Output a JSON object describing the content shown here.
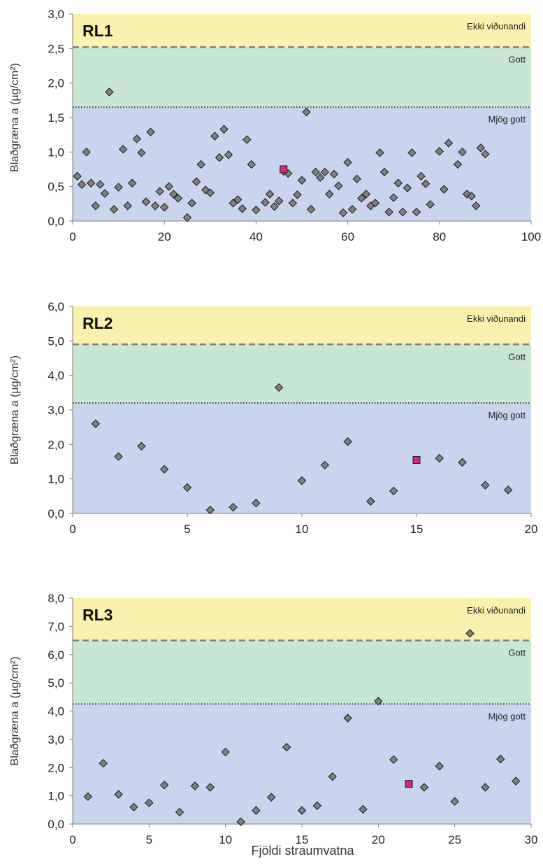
{
  "xlabel": "Fjöldi straumvatna",
  "chart_data": [
    {
      "type": "scatter",
      "title": "RL1",
      "ylabel": "Blaðgræna a (µg/cm²)",
      "xlim": [
        0,
        100
      ],
      "ylim": [
        0,
        3
      ],
      "xticks": [
        0,
        20,
        40,
        60,
        80,
        100
      ],
      "xtick_labels": [
        "0",
        "20",
        "40",
        "60",
        "80",
        "100"
      ],
      "yticks": [
        0,
        0.5,
        1,
        1.5,
        2,
        2.5,
        3
      ],
      "ytick_labels": [
        "0,0",
        "0,5",
        "1,0",
        "1,5",
        "2,0",
        "2,5",
        "3,0"
      ],
      "zones": [
        {
          "label": "Ekki viðunandi",
          "from": 2.52,
          "to": 3.0,
          "color": "#fbf1ae"
        },
        {
          "label": "Gott",
          "from": 1.65,
          "to": 2.52,
          "color": "#c7e7d2"
        },
        {
          "label": "Mjög gott",
          "from": 0,
          "to": 1.65,
          "color": "#c8d5ec"
        }
      ],
      "thresholds": [
        {
          "y": 2.52,
          "style": "dashed",
          "color": "#808080"
        },
        {
          "y": 1.65,
          "style": "dotted",
          "color": "#333333"
        }
      ],
      "series": [
        {
          "marker": "diamond",
          "color": "#808080",
          "x": [
            1,
            2,
            3,
            4,
            5,
            6,
            7,
            8,
            9,
            10,
            11,
            12,
            13,
            14,
            15,
            16,
            17,
            18,
            19,
            20,
            21,
            22,
            23,
            25,
            26,
            27,
            28,
            29,
            30,
            31,
            32,
            33,
            34,
            35,
            36,
            37,
            38,
            39,
            40,
            42,
            43,
            44,
            45,
            46,
            47,
            48,
            49,
            50,
            51,
            52,
            53,
            54,
            55,
            56,
            57,
            58,
            59,
            60,
            61,
            62,
            63,
            64,
            65,
            66,
            67,
            68,
            69,
            70,
            71,
            72,
            73,
            74,
            75,
            76,
            77,
            78,
            80,
            81,
            82,
            84,
            85,
            86,
            87,
            88,
            89,
            90
          ],
          "y": [
            0.65,
            0.53,
            1.0,
            0.55,
            0.22,
            0.53,
            0.4,
            1.87,
            0.17,
            0.49,
            1.04,
            0.22,
            0.55,
            1.19,
            0.99,
            0.28,
            1.29,
            0.22,
            0.43,
            0.2,
            0.5,
            0.39,
            0.33,
            0.05,
            0.26,
            0.57,
            0.82,
            0.45,
            0.41,
            1.23,
            0.92,
            1.33,
            0.96,
            0.26,
            0.31,
            0.18,
            1.18,
            0.82,
            0.16,
            0.27,
            0.39,
            0.21,
            0.29,
            0.72,
            0.69,
            0.26,
            0.38,
            0.59,
            1.58,
            0.17,
            0.71,
            0.63,
            0.71,
            0.39,
            0.68,
            0.51,
            0.12,
            0.85,
            0.17,
            0.61,
            0.33,
            0.39,
            0.22,
            0.26,
            0.99,
            0.71,
            0.13,
            0.34,
            0.55,
            0.13,
            0.48,
            0.99,
            0.13,
            0.65,
            0.54,
            0.24,
            1.01,
            0.46,
            1.13,
            0.82,
            1.0,
            0.39,
            0.36,
            0.22,
            1.06,
            0.97
          ]
        },
        {
          "marker": "square",
          "color": "#d6257a",
          "x": [
            46
          ],
          "y": [
            0.75
          ]
        }
      ]
    },
    {
      "type": "scatter",
      "title": "RL2",
      "ylabel": "Blaðgræna a (µg/cm²)",
      "xlim": [
        0,
        20
      ],
      "ylim": [
        0,
        6
      ],
      "xticks": [
        0,
        5,
        10,
        15,
        20
      ],
      "xtick_labels": [
        "0",
        "5",
        "10",
        "15",
        "20"
      ],
      "yticks": [
        0,
        1,
        2,
        3,
        4,
        5,
        6
      ],
      "ytick_labels": [
        "0,0",
        "1,0",
        "2,0",
        "3,0",
        "4,0",
        "5,0",
        "6,0"
      ],
      "zones": [
        {
          "label": "Ekki viðunandi",
          "from": 4.9,
          "to": 6.0,
          "color": "#fbf1ae"
        },
        {
          "label": "Gott",
          "from": 3.2,
          "to": 4.9,
          "color": "#c7e7d2"
        },
        {
          "label": "Mjög gott",
          "from": 0,
          "to": 3.2,
          "color": "#c8d5ec"
        }
      ],
      "thresholds": [
        {
          "y": 4.9,
          "style": "dashed",
          "color": "#808080"
        },
        {
          "y": 3.2,
          "style": "dotted",
          "color": "#333333"
        }
      ],
      "series": [
        {
          "marker": "diamond",
          "color": "#808080",
          "x": [
            1,
            2,
            3,
            4,
            5,
            6,
            7,
            8,
            9,
            10,
            11,
            12,
            13,
            14,
            16,
            17,
            18,
            19
          ],
          "y": [
            2.6,
            1.65,
            1.95,
            1.28,
            0.75,
            0.1,
            0.18,
            0.3,
            3.65,
            0.95,
            1.4,
            2.08,
            0.35,
            0.65,
            1.6,
            1.48,
            0.82,
            0.68
          ]
        },
        {
          "marker": "square",
          "color": "#d6257a",
          "x": [
            15
          ],
          "y": [
            1.55
          ]
        }
      ]
    },
    {
      "type": "scatter",
      "title": "RL3",
      "ylabel": "Blaðgræna a (µg/cm²)",
      "xlim": [
        0,
        30
      ],
      "ylim": [
        0,
        8
      ],
      "xticks": [
        0,
        5,
        10,
        15,
        20,
        25,
        30
      ],
      "xtick_labels": [
        "0",
        "5",
        "10",
        "15",
        "20",
        "25",
        "30"
      ],
      "yticks": [
        0,
        1,
        2,
        3,
        4,
        5,
        6,
        7,
        8
      ],
      "ytick_labels": [
        "0,0",
        "1,0",
        "2,0",
        "3,0",
        "4,0",
        "5,0",
        "6,0",
        "7,0",
        "8,0"
      ],
      "zones": [
        {
          "label": "Ekki viðunandi",
          "from": 6.5,
          "to": 8.0,
          "color": "#fbf1ae"
        },
        {
          "label": "Gott",
          "from": 4.25,
          "to": 6.5,
          "color": "#c7e7d2"
        },
        {
          "label": "Mjög gott",
          "from": 0,
          "to": 4.25,
          "color": "#c8d5ec"
        }
      ],
      "thresholds": [
        {
          "y": 6.5,
          "style": "dashed",
          "color": "#808080"
        },
        {
          "y": 4.25,
          "style": "dotted",
          "color": "#333333"
        }
      ],
      "series": [
        {
          "marker": "diamond",
          "color": "#808080",
          "x": [
            1,
            2,
            3,
            4,
            5,
            6,
            7,
            8,
            9,
            10,
            11,
            12,
            13,
            14,
            15,
            16,
            17,
            18,
            19,
            20,
            21,
            23,
            24,
            25,
            26,
            27,
            28,
            29
          ],
          "y": [
            0.97,
            2.15,
            1.05,
            0.6,
            0.75,
            1.38,
            0.42,
            1.35,
            1.3,
            2.55,
            0.08,
            0.48,
            0.95,
            2.72,
            0.48,
            0.65,
            1.68,
            3.75,
            0.52,
            4.35,
            2.28,
            1.3,
            2.05,
            0.8,
            6.75,
            1.3,
            2.3,
            1.52
          ]
        },
        {
          "marker": "square",
          "color": "#d6257a",
          "x": [
            22
          ],
          "y": [
            1.42
          ]
        }
      ]
    }
  ]
}
